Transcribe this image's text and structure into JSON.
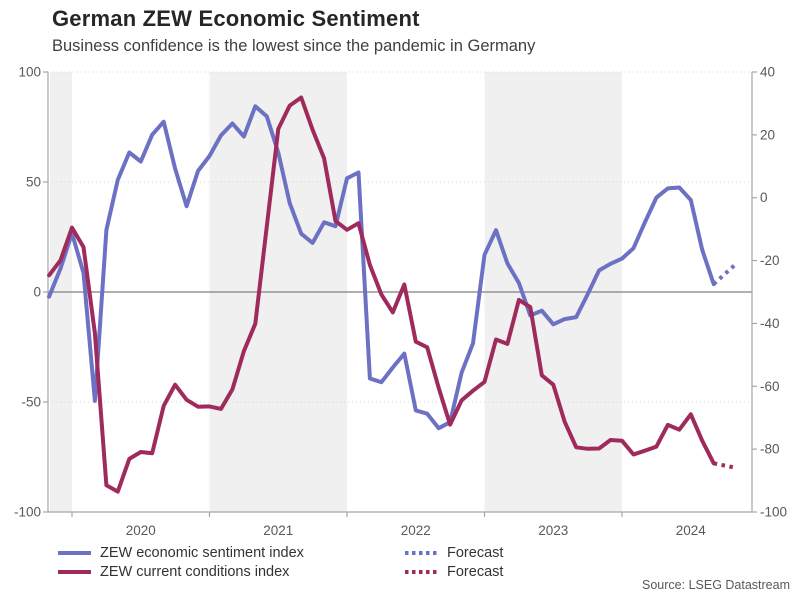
{
  "header": {
    "title": "German ZEW Economic Sentiment",
    "subtitle": "Business confidence is the lowest since the pandemic in Germany"
  },
  "source": "Source: LSEG Datastream",
  "colors": {
    "sentiment_line": "#6d71c4",
    "conditions_line": "#9f2a5c",
    "zero_line": "#7f7f7f",
    "frame": "#a6a6a6",
    "gridline": "#d9d9d9",
    "band_fill": "#f0f0f0",
    "tick_label": "#595959"
  },
  "legend": {
    "items": [
      {
        "label": "ZEW economic sentiment index",
        "color": "#6d71c4",
        "style": "solid"
      },
      {
        "label": "ZEW current conditions index",
        "color": "#9f2a5c",
        "style": "solid"
      },
      {
        "label": "Forecast",
        "color": "#6d71c4",
        "style": "dotted"
      },
      {
        "label": "Forecast",
        "color": "#9f2a5c",
        "style": "dotted"
      }
    ]
  },
  "chart_data": {
    "type": "line",
    "title": "German ZEW Economic Sentiment",
    "subtitle": "Business confidence is the lowest since the pandemic in Germany",
    "x_start_month": "2019-11",
    "x_end_month": "2024-09",
    "months_per_point": 1,
    "x_tick_years": [
      2020,
      2021,
      2022,
      2023,
      2024
    ],
    "shaded_year_bands": [
      {
        "from_year": null,
        "to_year": 2020
      },
      {
        "from_year": 2021,
        "to_year": 2022
      },
      {
        "from_year": 2023,
        "to_year": 2024
      }
    ],
    "axes": {
      "left": {
        "range": [
          -100,
          100
        ],
        "ticks": [
          100,
          50,
          0,
          -50,
          -100
        ]
      },
      "right": {
        "range": [
          -100,
          40
        ],
        "ticks": [
          40,
          20,
          0,
          -20,
          -40,
          -60,
          -80,
          -100
        ]
      }
    },
    "gridlines": {
      "dotted_left_values": [
        100,
        50,
        -50
      ],
      "zero_line_left_value": 0
    },
    "series": [
      {
        "name": "ZEW economic sentiment index",
        "axis": "left",
        "color": "#6d71c4",
        "values": [
          -2.1,
          10.7,
          26.7,
          8.7,
          -49.5,
          28.2,
          51.0,
          63.4,
          59.3,
          71.5,
          77.4,
          56.1,
          39.0,
          55.0,
          61.8,
          71.2,
          76.6,
          70.7,
          84.4,
          79.8,
          63.3,
          40.4,
          26.5,
          22.3,
          31.7,
          29.9,
          51.7,
          54.3,
          -39.3,
          -41.0,
          -34.3,
          -28.0,
          -53.8,
          -55.3,
          -61.9,
          -59.2,
          -36.7,
          -23.3,
          16.9,
          28.1,
          13.0,
          4.1,
          -10.7,
          -8.5,
          -14.7,
          -12.3,
          -11.4,
          -1.1,
          9.8,
          12.8,
          15.2,
          19.9,
          31.7,
          42.9,
          47.1,
          47.5,
          41.8,
          19.2,
          3.6
        ],
        "forecast": {
          "label": "Forecast",
          "month": "2024-10",
          "value": 13.0,
          "extend_months": 2
        }
      },
      {
        "name": "ZEW current conditions index",
        "axis": "right",
        "color": "#9f2a5c",
        "values": [
          -24.7,
          -19.9,
          -9.5,
          -15.7,
          -43.1,
          -91.5,
          -93.5,
          -83.1,
          -80.9,
          -81.3,
          -66.2,
          -59.5,
          -64.3,
          -66.5,
          -66.4,
          -67.2,
          -61.0,
          -48.8,
          -40.1,
          -9.1,
          21.9,
          29.3,
          31.9,
          21.6,
          12.5,
          -7.4,
          -10.2,
          -8.1,
          -21.4,
          -30.8,
          -36.5,
          -27.6,
          -45.8,
          -47.6,
          -60.5,
          -72.2,
          -64.5,
          -61.4,
          -58.6,
          -45.1,
          -46.5,
          -32.5,
          -34.8,
          -56.5,
          -59.5,
          -71.3,
          -79.4,
          -79.9,
          -79.8,
          -77.1,
          -77.3,
          -81.7,
          -80.5,
          -79.2,
          -72.3,
          -73.8,
          -68.9,
          -77.3,
          -84.5
        ],
        "forecast": {
          "label": "Forecast",
          "month": "2024-10",
          "value": -86.0,
          "extend_months": 2
        }
      }
    ]
  }
}
